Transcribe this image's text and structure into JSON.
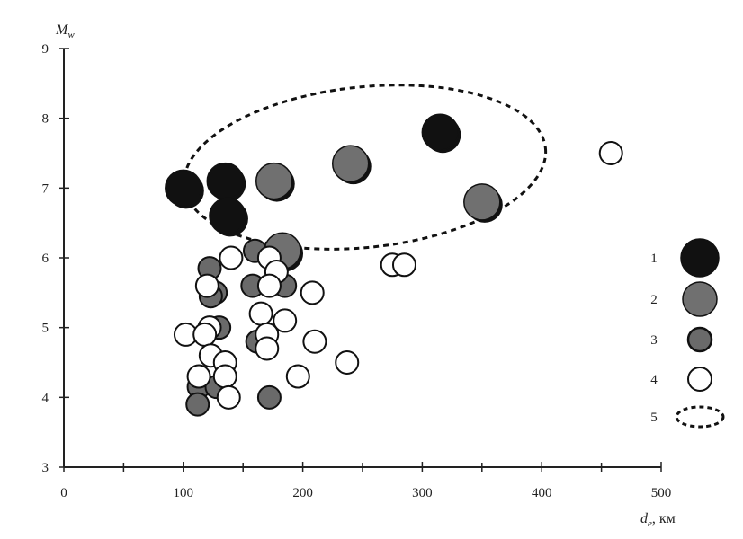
{
  "chart_data": {
    "type": "scatter",
    "xlabel_main": "d",
    "xlabel_sub": "e",
    "xlabel_unit": ", км",
    "ylabel_main": "M",
    "ylabel_sub": "w",
    "xlim": [
      0,
      500
    ],
    "ylim": [
      3,
      9
    ],
    "xticks": [
      0,
      100,
      200,
      300,
      400,
      500
    ],
    "xticks_minor": [
      50,
      150,
      250,
      350,
      450
    ],
    "yticks": [
      3,
      4,
      5,
      6,
      7,
      8,
      9
    ],
    "grid": false,
    "legend_position": "right",
    "series": [
      {
        "key": "1",
        "fill": "#111111",
        "size": "large",
        "points": [
          [
            100,
            7.0
          ],
          [
            135,
            7.1
          ],
          [
            137,
            6.6
          ],
          [
            315,
            7.8
          ]
        ]
      },
      {
        "key": "2",
        "fill": "#707070",
        "size": "large",
        "points": [
          [
            176,
            7.1
          ],
          [
            183,
            6.1
          ],
          [
            240,
            7.35
          ],
          [
            350,
            6.8
          ]
        ]
      },
      {
        "key": "3",
        "fill": "#6a6a6a",
        "size": "medium",
        "points": [
          [
            122,
            5.85
          ],
          [
            127,
            5.5
          ],
          [
            123,
            5.45
          ],
          [
            160,
            6.1
          ],
          [
            158,
            5.6
          ],
          [
            185,
            5.6
          ],
          [
            130,
            5.0
          ],
          [
            162,
            4.8
          ],
          [
            113,
            4.15
          ],
          [
            128,
            4.15
          ],
          [
            112,
            3.9
          ],
          [
            172,
            4.0
          ]
        ]
      },
      {
        "key": "4",
        "fill": "#ffffff",
        "size": "medium",
        "points": [
          [
            140,
            6.0
          ],
          [
            172,
            6.0
          ],
          [
            178,
            5.8
          ],
          [
            120,
            5.6
          ],
          [
            172,
            5.6
          ],
          [
            208,
            5.5
          ],
          [
            165,
            5.2
          ],
          [
            185,
            5.1
          ],
          [
            102,
            4.9
          ],
          [
            122,
            5.0
          ],
          [
            118,
            4.9
          ],
          [
            170,
            4.9
          ],
          [
            170,
            4.7
          ],
          [
            210,
            4.8
          ],
          [
            123,
            4.6
          ],
          [
            135,
            4.5
          ],
          [
            113,
            4.3
          ],
          [
            135,
            4.3
          ],
          [
            196,
            4.3
          ],
          [
            237,
            4.5
          ],
          [
            138,
            4.0
          ],
          [
            275,
            5.9
          ],
          [
            285,
            5.9
          ],
          [
            458,
            7.5
          ]
        ]
      }
    ],
    "ellipse": {
      "key": "5",
      "center": [
        252,
        7.3
      ],
      "radius_x": 152,
      "radius_y": 1.15
    },
    "legend": [
      {
        "label": "1",
        "symbol": "large-black-circle"
      },
      {
        "label": "2",
        "symbol": "large-gray-circle"
      },
      {
        "label": "3",
        "symbol": "small-gray-circle"
      },
      {
        "label": "4",
        "symbol": "small-white-circle"
      },
      {
        "label": "5",
        "symbol": "dashed-ellipse"
      }
    ]
  }
}
